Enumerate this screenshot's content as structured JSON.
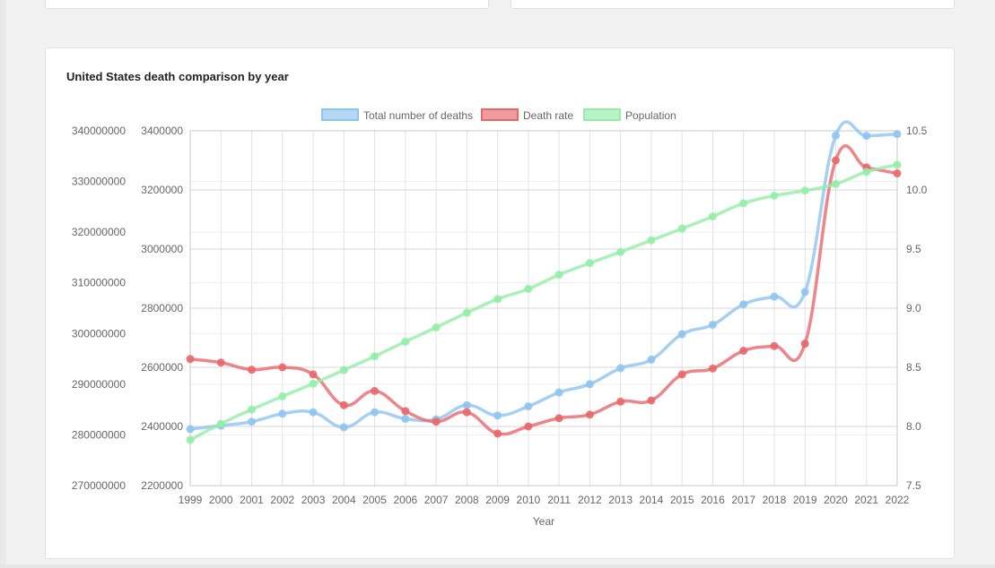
{
  "page": {
    "title": "United States death comparison by year"
  },
  "colors": {
    "deaths": "#8ec4f0",
    "rate": "#e8676b",
    "population": "#93eda7"
  },
  "chart_data": {
    "type": "line",
    "title": "United States death comparison by year",
    "xlabel": "Year",
    "legend_position": "top",
    "grid": true,
    "x": [
      "1999",
      "2000",
      "2001",
      "2002",
      "2003",
      "2004",
      "2005",
      "2006",
      "2007",
      "2008",
      "2009",
      "2010",
      "2011",
      "2012",
      "2013",
      "2014",
      "2015",
      "2016",
      "2017",
      "2018",
      "2019",
      "2020",
      "2021",
      "2022"
    ],
    "axes": {
      "population": {
        "side": "left-outer",
        "ylim": [
          270000000,
          340000000
        ],
        "ticks": [
          "340000000",
          "330000000",
          "320000000",
          "310000000",
          "300000000",
          "290000000",
          "280000000",
          "270000000"
        ]
      },
      "deaths": {
        "side": "left-inner",
        "ylim": [
          2200000,
          3400000
        ],
        "ticks": [
          "3400000",
          "3200000",
          "3000000",
          "2800000",
          "2600000",
          "2400000",
          "2200000"
        ]
      },
      "rate": {
        "side": "right",
        "ylim": [
          7.5,
          10.5
        ],
        "ticks": [
          "10.5",
          "10.0",
          "9.5",
          "9.0",
          "8.5",
          "8.0",
          "7.5"
        ]
      }
    },
    "series": [
      {
        "name": "Total number of deaths",
        "axis": "deaths",
        "values": [
          2391000,
          2403000,
          2416000,
          2443000,
          2448000,
          2397000,
          2448000,
          2426000,
          2424000,
          2472000,
          2437000,
          2468000,
          2515000,
          2543000,
          2597000,
          2626000,
          2712000,
          2744000,
          2813000,
          2839000,
          2855000,
          3384000,
          3383000,
          3389000
        ]
      },
      {
        "name": "Death rate",
        "axis": "rate",
        "values": [
          8.57,
          8.54,
          8.48,
          8.5,
          8.44,
          8.18,
          8.3,
          8.13,
          8.04,
          8.12,
          7.94,
          8.0,
          8.07,
          8.1,
          8.21,
          8.22,
          8.44,
          8.49,
          8.64,
          8.68,
          8.7,
          10.25,
          10.19,
          10.14
        ]
      },
      {
        "name": "Population",
        "axis": "population",
        "values": [
          279000000,
          282200000,
          285000000,
          287600000,
          290100000,
          292800000,
          295500000,
          298400000,
          301200000,
          304100000,
          306800000,
          308800000,
          311600000,
          313900000,
          316100000,
          318400000,
          320700000,
          323100000,
          325700000,
          327200000,
          328200000,
          329500000,
          331900000,
          333300000
        ]
      }
    ]
  }
}
